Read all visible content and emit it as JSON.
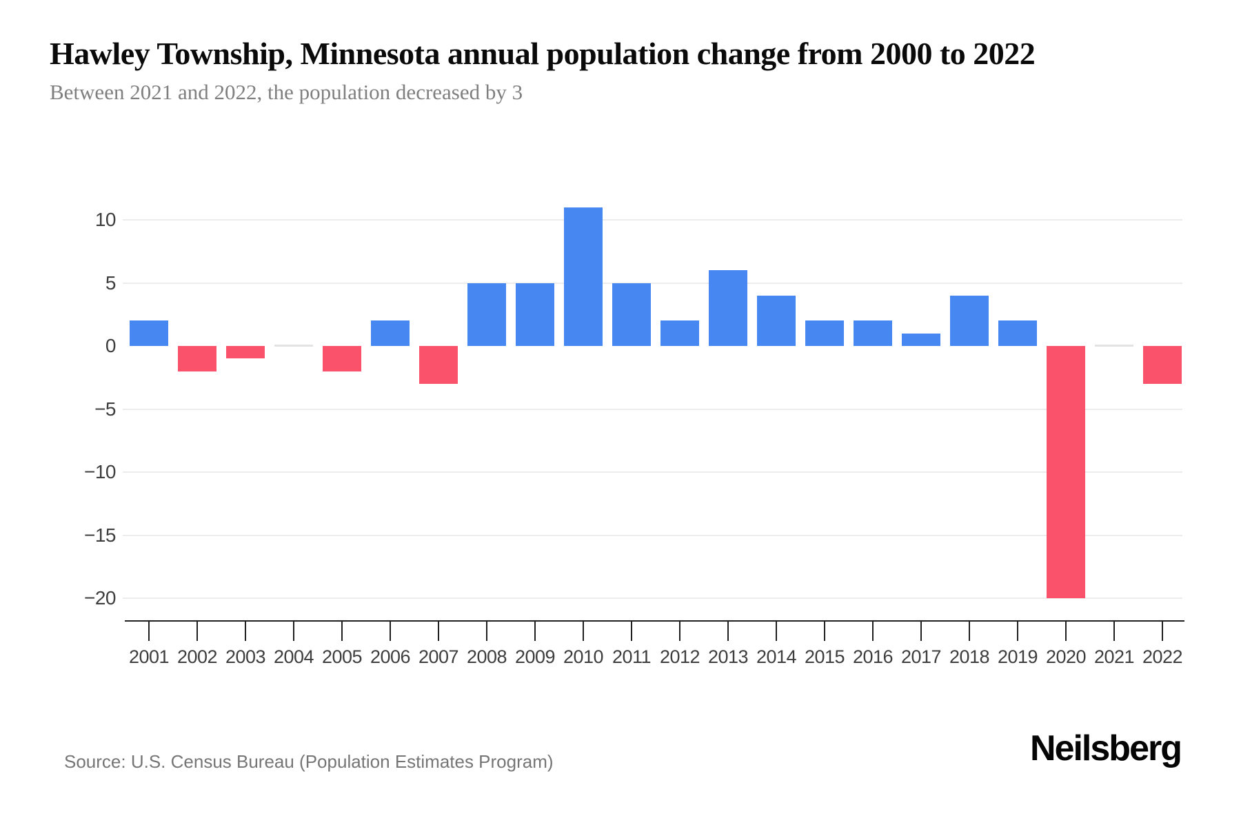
{
  "header": {
    "title": "Hawley Township, Minnesota annual population change from 2000 to 2022",
    "subtitle": "Between 2021 and 2022, the population decreased by 3"
  },
  "footer": {
    "source": "Source: U.S. Census Bureau (Population Estimates Program)",
    "brand": "Neilsberg"
  },
  "chart_data": {
    "type": "bar",
    "title": "Hawley Township, Minnesota annual population change from 2000 to 2022",
    "subtitle": "Between 2021 and 2022, the population decreased by 3",
    "categories": [
      "2001",
      "2002",
      "2003",
      "2004",
      "2005",
      "2006",
      "2007",
      "2008",
      "2009",
      "2010",
      "2011",
      "2012",
      "2013",
      "2014",
      "2015",
      "2016",
      "2017",
      "2018",
      "2019",
      "2020",
      "2021",
      "2022"
    ],
    "values": [
      2,
      -2,
      -1,
      0,
      -2,
      2,
      -3,
      5,
      5,
      11,
      5,
      2,
      6,
      4,
      2,
      2,
      1,
      4,
      2,
      -20,
      0,
      -3
    ],
    "xlabel": "",
    "ylabel": "",
    "ylim": [
      -20,
      11
    ],
    "y_tick_values": [
      10,
      5,
      0,
      -5,
      -10,
      -15,
      -20
    ],
    "y_tick_labels": [
      "10",
      "5",
      "0",
      "−5",
      "−10",
      "−15",
      "−20"
    ],
    "grid": "horizontal-light, no zero gridline; zero-value years drawn as thin gray stub at baseline",
    "legend": "none",
    "colors": {
      "positive": "#4787F1",
      "negative": "#FA526B",
      "zero_stub": "#E3E3E3",
      "gridline": "#ECECEC",
      "axis": "#1F1F1F",
      "tick_label": "#3D3D3D"
    }
  }
}
